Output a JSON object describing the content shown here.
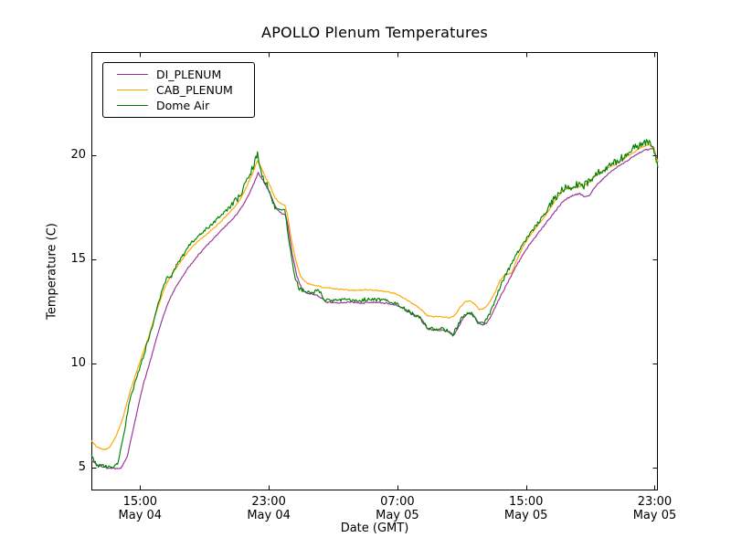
{
  "figure": {
    "background": "#ffffff"
  },
  "chart_data": {
    "type": "line",
    "title": "APOLLO Plenum Temperatures",
    "xlabel": "Date (GMT)",
    "ylabel": "Temperature (C)",
    "x_unit": "hours since May 04 00:00 GMT",
    "xlim": [
      11.97,
      47.2
    ],
    "ylim": [
      3.9,
      24.96
    ],
    "grid": false,
    "legend_position": "upper left",
    "axis_color": "#000000",
    "xticks": [
      {
        "hour": 15,
        "line1": "15:00",
        "line2": "May 04"
      },
      {
        "hour": 23,
        "line1": "23:00",
        "line2": "May 04"
      },
      {
        "hour": 31,
        "line1": "07:00",
        "line2": "May 05"
      },
      {
        "hour": 39,
        "line1": "15:00",
        "line2": "May 05"
      },
      {
        "hour": 47,
        "line1": "23:00",
        "line2": "May 05"
      }
    ],
    "yticks": [
      {
        "value": 5,
        "label": "5"
      },
      {
        "value": 10,
        "label": "10"
      },
      {
        "value": 15,
        "label": "15"
      },
      {
        "value": 20,
        "label": "20"
      }
    ],
    "series": [
      {
        "name": "DI_PLENUM",
        "color": "#993399",
        "noise": 0.03,
        "noise_peak_mult": 1,
        "points": [
          [
            11.97,
            5.35
          ],
          [
            12.4,
            5.1
          ],
          [
            12.9,
            5.0
          ],
          [
            13.4,
            4.95
          ],
          [
            13.8,
            4.95
          ],
          [
            14.2,
            5.5
          ],
          [
            14.7,
            7.3
          ],
          [
            15.2,
            9.0
          ],
          [
            15.7,
            10.3
          ],
          [
            16.2,
            11.7
          ],
          [
            16.7,
            12.85
          ],
          [
            17.1,
            13.5
          ],
          [
            17.5,
            14.0
          ],
          [
            18.0,
            14.6
          ],
          [
            18.5,
            15.1
          ],
          [
            19.0,
            15.55
          ],
          [
            19.5,
            15.95
          ],
          [
            20.0,
            16.35
          ],
          [
            20.5,
            16.75
          ],
          [
            21.0,
            17.15
          ],
          [
            21.4,
            17.6
          ],
          [
            21.8,
            18.2
          ],
          [
            22.1,
            18.7
          ],
          [
            22.35,
            19.15
          ],
          [
            22.6,
            18.85
          ],
          [
            22.9,
            18.45
          ],
          [
            23.2,
            17.95
          ],
          [
            23.5,
            17.4
          ],
          [
            23.8,
            17.2
          ],
          [
            24.05,
            17.15
          ],
          [
            24.2,
            16.6
          ],
          [
            24.45,
            15.3
          ],
          [
            24.75,
            14.2
          ],
          [
            25.1,
            13.5
          ],
          [
            25.5,
            13.35
          ],
          [
            25.95,
            13.3
          ],
          [
            26.35,
            13.1
          ],
          [
            26.6,
            12.95
          ],
          [
            27.2,
            12.9
          ],
          [
            28.0,
            12.95
          ],
          [
            28.8,
            12.9
          ],
          [
            29.6,
            12.95
          ],
          [
            30.3,
            12.9
          ],
          [
            30.9,
            12.8
          ],
          [
            31.4,
            12.65
          ],
          [
            31.9,
            12.4
          ],
          [
            32.3,
            12.25
          ],
          [
            32.6,
            12.05
          ],
          [
            32.85,
            11.7
          ],
          [
            33.2,
            11.6
          ],
          [
            33.8,
            11.6
          ],
          [
            34.25,
            11.5
          ],
          [
            34.5,
            11.35
          ],
          [
            34.8,
            11.75
          ],
          [
            35.1,
            12.2
          ],
          [
            35.4,
            12.4
          ],
          [
            35.7,
            12.35
          ],
          [
            36.0,
            12.0
          ],
          [
            36.25,
            11.85
          ],
          [
            36.55,
            11.95
          ],
          [
            36.85,
            12.3
          ],
          [
            37.2,
            12.9
          ],
          [
            37.6,
            13.5
          ],
          [
            38.0,
            14.1
          ],
          [
            38.4,
            14.7
          ],
          [
            38.8,
            15.2
          ],
          [
            39.2,
            15.7
          ],
          [
            39.6,
            16.1
          ],
          [
            40.0,
            16.5
          ],
          [
            40.4,
            16.9
          ],
          [
            40.8,
            17.3
          ],
          [
            41.2,
            17.7
          ],
          [
            41.6,
            17.95
          ],
          [
            42.0,
            18.1
          ],
          [
            42.35,
            18.15
          ],
          [
            42.65,
            18.0
          ],
          [
            42.95,
            18.1
          ],
          [
            43.3,
            18.5
          ],
          [
            43.7,
            18.8
          ],
          [
            44.1,
            19.1
          ],
          [
            44.5,
            19.35
          ],
          [
            45.0,
            19.6
          ],
          [
            45.5,
            19.85
          ],
          [
            46.0,
            20.1
          ],
          [
            46.4,
            20.25
          ],
          [
            46.8,
            20.3
          ],
          [
            46.95,
            20.35
          ],
          [
            47.05,
            20.05
          ],
          [
            47.2,
            19.7
          ]
        ]
      },
      {
        "name": "CAB_PLENUM",
        "color": "#ffa500",
        "noise": 0.025,
        "noise_peak_mult": 1,
        "points": [
          [
            11.97,
            6.3
          ],
          [
            12.3,
            6.0
          ],
          [
            12.7,
            5.85
          ],
          [
            13.1,
            5.95
          ],
          [
            13.5,
            6.5
          ],
          [
            13.9,
            7.3
          ],
          [
            14.35,
            8.6
          ],
          [
            15.0,
            10.1
          ],
          [
            15.5,
            11.2
          ],
          [
            16.0,
            12.45
          ],
          [
            16.5,
            13.6
          ],
          [
            16.9,
            14.2
          ],
          [
            17.3,
            14.65
          ],
          [
            17.8,
            15.2
          ],
          [
            18.3,
            15.65
          ],
          [
            18.8,
            16.0
          ],
          [
            19.3,
            16.3
          ],
          [
            19.8,
            16.65
          ],
          [
            20.3,
            17.05
          ],
          [
            20.8,
            17.45
          ],
          [
            21.2,
            17.85
          ],
          [
            21.6,
            18.45
          ],
          [
            22.0,
            19.15
          ],
          [
            22.3,
            19.75
          ],
          [
            22.5,
            19.45
          ],
          [
            22.8,
            18.95
          ],
          [
            23.1,
            18.5
          ],
          [
            23.4,
            17.95
          ],
          [
            23.7,
            17.7
          ],
          [
            24.0,
            17.6
          ],
          [
            24.15,
            17.2
          ],
          [
            24.4,
            16.0
          ],
          [
            24.7,
            14.9
          ],
          [
            25.0,
            14.15
          ],
          [
            25.4,
            13.85
          ],
          [
            25.9,
            13.75
          ],
          [
            26.4,
            13.65
          ],
          [
            27.0,
            13.6
          ],
          [
            27.7,
            13.55
          ],
          [
            28.4,
            13.5
          ],
          [
            29.1,
            13.55
          ],
          [
            29.8,
            13.5
          ],
          [
            30.4,
            13.45
          ],
          [
            30.9,
            13.35
          ],
          [
            31.4,
            13.15
          ],
          [
            31.9,
            12.9
          ],
          [
            32.3,
            12.7
          ],
          [
            32.6,
            12.5
          ],
          [
            32.85,
            12.3
          ],
          [
            33.2,
            12.25
          ],
          [
            33.7,
            12.25
          ],
          [
            34.2,
            12.2
          ],
          [
            34.55,
            12.3
          ],
          [
            34.9,
            12.7
          ],
          [
            35.2,
            12.95
          ],
          [
            35.5,
            13.0
          ],
          [
            35.8,
            12.85
          ],
          [
            36.1,
            12.6
          ],
          [
            36.4,
            12.65
          ],
          [
            36.7,
            12.9
          ],
          [
            37.0,
            13.3
          ],
          [
            37.4,
            14.0
          ],
          [
            37.7,
            14.25
          ],
          [
            38.1,
            14.35
          ],
          [
            38.5,
            15.1
          ],
          [
            38.9,
            15.75
          ],
          [
            39.3,
            16.2
          ],
          [
            39.7,
            16.6
          ],
          [
            40.1,
            17.0
          ],
          [
            40.5,
            17.45
          ],
          [
            40.9,
            17.95
          ],
          [
            41.3,
            18.3
          ],
          [
            41.7,
            18.4
          ],
          [
            42.1,
            18.5
          ],
          [
            42.5,
            18.5
          ],
          [
            42.9,
            18.7
          ],
          [
            43.3,
            19.0
          ],
          [
            43.7,
            19.2
          ],
          [
            44.1,
            19.4
          ],
          [
            44.5,
            19.55
          ],
          [
            45.0,
            19.8
          ],
          [
            45.5,
            20.05
          ],
          [
            46.0,
            20.3
          ],
          [
            46.4,
            20.45
          ],
          [
            46.7,
            20.5
          ],
          [
            46.95,
            20.3
          ],
          [
            47.1,
            19.9
          ],
          [
            47.2,
            19.65
          ]
        ]
      },
      {
        "name": "Dome Air",
        "color": "#008000",
        "noise": 0.09,
        "noise_peak_mult": 2,
        "points": [
          [
            11.97,
            5.6
          ],
          [
            12.15,
            5.3
          ],
          [
            12.35,
            5.05
          ],
          [
            12.7,
            5.1
          ],
          [
            13.0,
            5.0
          ],
          [
            13.3,
            5.05
          ],
          [
            13.6,
            5.2
          ],
          [
            13.9,
            6.2
          ],
          [
            14.35,
            8.2
          ],
          [
            15.0,
            9.85
          ],
          [
            15.5,
            11.1
          ],
          [
            16.0,
            12.5
          ],
          [
            16.45,
            13.7
          ],
          [
            16.7,
            14.15
          ],
          [
            16.95,
            14.2
          ],
          [
            17.2,
            14.6
          ],
          [
            17.6,
            15.1
          ],
          [
            18.1,
            15.7
          ],
          [
            18.6,
            16.15
          ],
          [
            19.1,
            16.45
          ],
          [
            19.6,
            16.8
          ],
          [
            20.1,
            17.2
          ],
          [
            20.6,
            17.5
          ],
          [
            21.0,
            17.85
          ],
          [
            21.35,
            18.3
          ],
          [
            21.7,
            18.9
          ],
          [
            21.95,
            19.3
          ],
          [
            22.15,
            19.7
          ],
          [
            22.3,
            20.05
          ],
          [
            22.45,
            19.5
          ],
          [
            22.65,
            18.95
          ],
          [
            22.95,
            18.5
          ],
          [
            23.25,
            17.8
          ],
          [
            23.45,
            17.5
          ],
          [
            23.7,
            17.4
          ],
          [
            24.0,
            17.3
          ],
          [
            24.1,
            16.8
          ],
          [
            24.35,
            15.4
          ],
          [
            24.6,
            14.2
          ],
          [
            24.9,
            13.6
          ],
          [
            25.3,
            13.45
          ],
          [
            25.7,
            13.4
          ],
          [
            26.1,
            13.5
          ],
          [
            26.3,
            13.3
          ],
          [
            26.45,
            13.05
          ],
          [
            26.9,
            13.0
          ],
          [
            27.6,
            13.05
          ],
          [
            28.4,
            13.0
          ],
          [
            29.2,
            13.1
          ],
          [
            30.0,
            13.05
          ],
          [
            30.6,
            12.95
          ],
          [
            31.1,
            12.8
          ],
          [
            31.6,
            12.55
          ],
          [
            32.0,
            12.35
          ],
          [
            32.4,
            12.2
          ],
          [
            32.65,
            11.95
          ],
          [
            32.85,
            11.7
          ],
          [
            33.2,
            11.65
          ],
          [
            33.8,
            11.65
          ],
          [
            34.2,
            11.55
          ],
          [
            34.45,
            11.4
          ],
          [
            34.75,
            11.8
          ],
          [
            35.05,
            12.3
          ],
          [
            35.35,
            12.45
          ],
          [
            35.65,
            12.4
          ],
          [
            35.95,
            12.05
          ],
          [
            36.15,
            11.9
          ],
          [
            36.45,
            12.0
          ],
          [
            36.75,
            12.4
          ],
          [
            37.1,
            13.1
          ],
          [
            37.5,
            13.9
          ],
          [
            37.9,
            14.5
          ],
          [
            38.3,
            15.1
          ],
          [
            38.7,
            15.65
          ],
          [
            39.1,
            16.05
          ],
          [
            39.5,
            16.5
          ],
          [
            39.9,
            16.9
          ],
          [
            40.3,
            17.35
          ],
          [
            40.7,
            17.85
          ],
          [
            41.1,
            18.2
          ],
          [
            41.4,
            18.45
          ],
          [
            41.8,
            18.5
          ],
          [
            42.2,
            18.6
          ],
          [
            42.6,
            18.55
          ],
          [
            43.0,
            18.8
          ],
          [
            43.4,
            19.1
          ],
          [
            43.8,
            19.3
          ],
          [
            44.2,
            19.5
          ],
          [
            44.6,
            19.7
          ],
          [
            45.0,
            19.9
          ],
          [
            45.4,
            20.15
          ],
          [
            45.8,
            20.4
          ],
          [
            46.2,
            20.55
          ],
          [
            46.6,
            20.6
          ],
          [
            46.9,
            20.45
          ],
          [
            47.05,
            19.9
          ],
          [
            47.2,
            19.4
          ]
        ]
      }
    ]
  }
}
